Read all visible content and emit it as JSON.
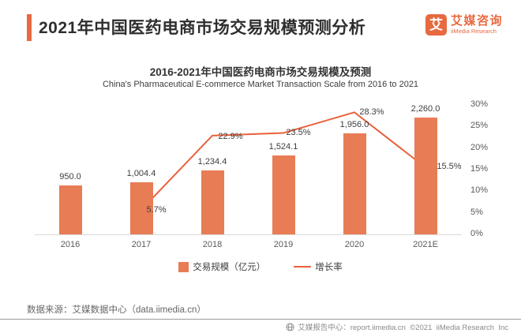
{
  "header": {
    "title": "2021年中国医药电商市场交易规模预测分析",
    "logo": {
      "mark": "艾",
      "name_cn": "艾媒咨询",
      "name_en": "iiMedia Research"
    }
  },
  "chart_data": {
    "type": "bar+line",
    "title": "2016-2021年中国医药电商市场交易规模及预测",
    "subtitle": "China's Pharmaceutical E-commerce Market Transaction Scale from 2016 to 2021",
    "categories": [
      "2016",
      "2017",
      "2018",
      "2019",
      "2020",
      "2021E"
    ],
    "series": [
      {
        "name": "交易规模（亿元）",
        "type": "bar",
        "values": [
          950.0,
          1004.4,
          1234.4,
          1524.1,
          1956.0,
          2260.0
        ],
        "labels": [
          "950.0",
          "1,004.4",
          "1,234.4",
          "1,524.1",
          "1,956.0",
          "2,260.0"
        ],
        "color": "#E87C54",
        "axis_max": 2500
      },
      {
        "name": "增长率",
        "type": "line",
        "values": [
          null,
          5.7,
          22.9,
          23.5,
          28.3,
          15.5
        ],
        "labels": [
          null,
          "5.7%",
          "22.9%",
          "23.5%",
          "28.3%",
          "15.5%"
        ],
        "color": "#E8613B",
        "axis_max": 30,
        "label_dx": [
          0,
          19,
          23,
          19,
          22,
          30
        ],
        "label_dy": [
          0,
          1,
          2,
          0,
          1,
          0
        ]
      }
    ],
    "right_axis": {
      "ticks": [
        "30%",
        "25%",
        "20%",
        "15%",
        "10%",
        "5%",
        "0%"
      ],
      "range": [
        0,
        30
      ]
    },
    "legend": [
      "交易规模（亿元）",
      "增长率"
    ],
    "grid": false,
    "legend_position": "bottom"
  },
  "source": {
    "text": "数据来源：艾媒数据中心（data.iimedia.cn）"
  },
  "footer": {
    "text": "艾媒报告中心：report.iimedia.cn  ©2021  iiMedia Research  Inc"
  },
  "colors": {
    "accent": "#E8693F",
    "bar": "#E87C54",
    "line": "#E8613B",
    "axis_line": "#D9D9D9"
  }
}
